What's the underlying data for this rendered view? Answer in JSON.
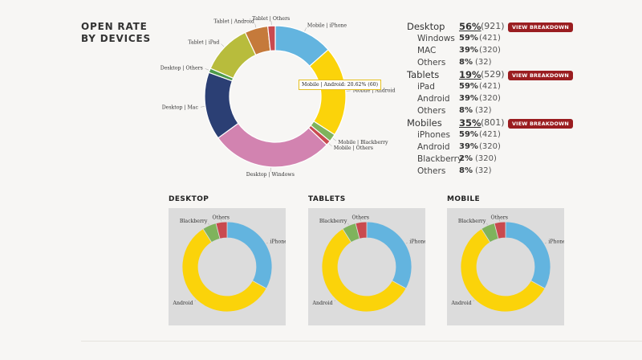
{
  "title_lines": [
    "OPEN RATE",
    "BY DEVICES"
  ],
  "colors": {
    "mobile_iphone": "#63b4df",
    "mobile_android": "#fbd30a",
    "mobile_blackberry": "#7fb35c",
    "mobile_others": "#c94a4f",
    "desktop_windows": "#d283b0",
    "desktop_mac": "#2b3f74",
    "desktop_others": "#4e9a4a",
    "tablet_ipad": "#b8bc3c",
    "tablet_android": "#c57a3b",
    "tablet_others": "#c94a4f",
    "button": "#9a1d20"
  },
  "tooltip": "Mobile | Android: 20.62% (60)",
  "stats": [
    {
      "name": "Desktop",
      "pct": "56%",
      "count": "(921)",
      "button": "VIEW BREAKDOWN",
      "items": [
        {
          "name": "Windows",
          "pct": "59%",
          "count": "(421)"
        },
        {
          "name": "MAC",
          "pct": "39%",
          "count": "(320)"
        },
        {
          "name": "Others",
          "pct": "8%",
          "count": "(32)"
        }
      ]
    },
    {
      "name": "Tablets",
      "pct": "19%",
      "count": "(529)",
      "button": "VIEW BREAKDOWN",
      "items": [
        {
          "name": "iPad",
          "pct": "59%",
          "count": "(421)"
        },
        {
          "name": "Android",
          "pct": "39%",
          "count": "(320)"
        },
        {
          "name": "Others",
          "pct": "8%",
          "count": "(32)"
        }
      ]
    },
    {
      "name": "Mobiles",
      "pct": "35%",
      "count": "(801)",
      "button": "VIEW BREAKDOWN",
      "items": [
        {
          "name": "iPhones",
          "pct": "59%",
          "count": "(421)"
        },
        {
          "name": "Android",
          "pct": "39%",
          "count": "(320)"
        },
        {
          "name": "Blackberry",
          "pct": "2%",
          "count": "(320)"
        },
        {
          "name": "Others",
          "pct": "8%",
          "count": "(32)"
        }
      ]
    }
  ],
  "chart_data": [
    {
      "type": "pie",
      "title": "OPEN RATE BY DEVICES",
      "slices": [
        {
          "label": "Mobile | iPhone",
          "value": 13.5,
          "color_key": "mobile_iphone"
        },
        {
          "label": "Mobile | Android",
          "value": 20.62,
          "color_key": "mobile_android"
        },
        {
          "label": "Mobile | Blackberry",
          "value": 1.8,
          "color_key": "mobile_blackberry"
        },
        {
          "label": "Mobile | Others",
          "value": 1.1,
          "color_key": "mobile_others"
        },
        {
          "label": "Desktop | Windows",
          "value": 28.0,
          "color_key": "desktop_windows"
        },
        {
          "label": "Desktop | Mac",
          "value": 15.5,
          "color_key": "desktop_mac"
        },
        {
          "label": "Desktop | Others",
          "value": 1.0,
          "color_key": "desktop_others"
        },
        {
          "label": "Tablet | iPad",
          "value": 11.5,
          "color_key": "tablet_ipad"
        },
        {
          "label": "Tablet | Android",
          "value": 5.3,
          "color_key": "tablet_android"
        },
        {
          "label": "Tablet | Others",
          "value": 1.7,
          "color_key": "tablet_others"
        }
      ]
    },
    {
      "type": "pie",
      "title": "DESKTOP",
      "slices": [
        {
          "label": "iPhone",
          "value": 33,
          "color_key": "mobile_iphone"
        },
        {
          "label": "Android",
          "value": 58,
          "color_key": "mobile_android"
        },
        {
          "label": "Blackberry",
          "value": 5,
          "color_key": "mobile_blackberry"
        },
        {
          "label": "Others",
          "value": 4,
          "color_key": "mobile_others"
        }
      ]
    },
    {
      "type": "pie",
      "title": "TABLETS",
      "slices": [
        {
          "label": "iPhone",
          "value": 33,
          "color_key": "mobile_iphone"
        },
        {
          "label": "Android",
          "value": 58,
          "color_key": "mobile_android"
        },
        {
          "label": "Blackberry",
          "value": 5,
          "color_key": "mobile_blackberry"
        },
        {
          "label": "Others",
          "value": 4,
          "color_key": "mobile_others"
        }
      ]
    },
    {
      "type": "pie",
      "title": "MOBILE",
      "slices": [
        {
          "label": "iPhone",
          "value": 33,
          "color_key": "mobile_iphone"
        },
        {
          "label": "Android",
          "value": 58,
          "color_key": "mobile_android"
        },
        {
          "label": "Blackberry",
          "value": 5,
          "color_key": "mobile_blackberry"
        },
        {
          "label": "Others",
          "value": 4,
          "color_key": "mobile_others"
        }
      ]
    }
  ]
}
